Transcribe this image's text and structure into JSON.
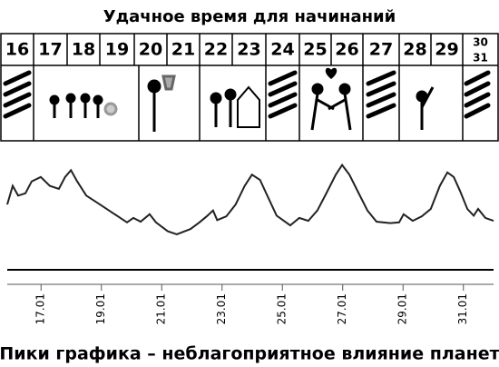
{
  "header": {
    "title": "Удачное время для начинаний"
  },
  "days": [
    "16",
    "17",
    "18",
    "19",
    "20",
    "21",
    "22",
    "23",
    "24",
    "25",
    "26",
    "27",
    "28",
    "29",
    "30",
    "31"
  ],
  "chart_data": {
    "type": "line",
    "x": [
      15.88,
      16.06,
      16.24,
      16.48,
      16.69,
      16.99,
      17.29,
      17.59,
      17.8,
      17.99,
      18.2,
      18.5,
      18.95,
      19.4,
      19.85,
      20.06,
      20.3,
      20.6,
      20.81,
      21.2,
      21.5,
      21.95,
      22.25,
      22.49,
      22.7,
      22.84,
      23.14,
      23.45,
      23.75,
      23.99,
      24.26,
      24.5,
      24.81,
      25.26,
      25.56,
      25.86,
      26.16,
      26.47,
      26.77,
      26.98,
      27.22,
      27.52,
      27.82,
      28.12,
      28.57,
      28.87,
      29.02,
      29.32,
      29.62,
      29.92,
      30.22,
      30.47,
      30.68,
      30.89,
      31.13,
      31.34,
      31.49,
      31.73,
      32.0
    ],
    "series": [
      {
        "color": "#222222",
        "values": [
          45,
          70,
          57,
          60,
          76,
          82,
          70,
          66,
          82,
          91,
          76,
          57,
          45,
          33,
          21,
          27,
          22,
          32,
          21,
          9,
          5,
          12,
          21,
          29,
          37,
          24,
          29,
          45,
          70,
          85,
          78,
          57,
          30,
          17,
          27,
          23,
          37,
          61,
          85,
          98,
          85,
          61,
          37,
          22,
          20,
          21,
          32,
          23,
          29,
          39,
          70,
          88,
          82,
          63,
          39,
          30,
          39,
          27,
          23
        ]
      }
    ],
    "xlim": [
      15.88,
      32.0
    ],
    "ylim": [
      0,
      100
    ],
    "xticks": [
      {
        "value": 17,
        "label": "17.01"
      },
      {
        "value": 19,
        "label": "19.01"
      },
      {
        "value": 21,
        "label": "21.01"
      },
      {
        "value": 23,
        "label": "23.01"
      },
      {
        "value": 25,
        "label": "25.01"
      },
      {
        "value": 27,
        "label": "27.01"
      },
      {
        "value": 29,
        "label": "29.01"
      },
      {
        "value": 31,
        "label": "31.01"
      }
    ]
  },
  "footer": {
    "caption": "Пики графика – неблагоприятное влияние планет"
  }
}
